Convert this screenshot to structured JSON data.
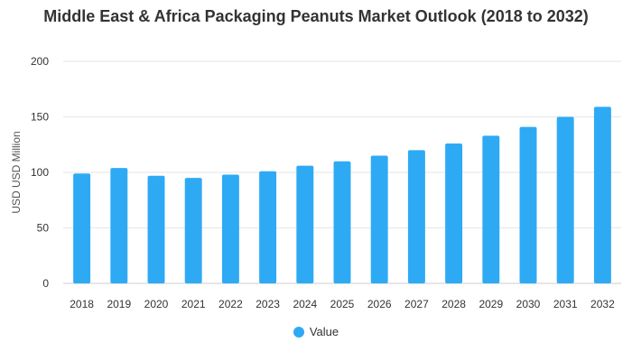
{
  "chart_data": {
    "type": "bar",
    "title": "Middle East & Africa Packaging Peanuts Market Outlook (2018 to 2032)",
    "xlabel": "",
    "ylabel": "USD USD Million",
    "ylim": [
      0,
      200
    ],
    "yticks": [
      0,
      50,
      100,
      150,
      200
    ],
    "grid": true,
    "legend_position": "bottom",
    "categories": [
      "2018",
      "2019",
      "2020",
      "2021",
      "2022",
      "2023",
      "2024",
      "2025",
      "2026",
      "2027",
      "2028",
      "2029",
      "2030",
      "2031",
      "2032"
    ],
    "series": [
      {
        "name": "Value",
        "color": "#2EAAF5",
        "values": [
          99,
          104,
          97,
          95,
          98,
          101,
          106,
          110,
          115,
          120,
          126,
          133,
          141,
          150,
          159
        ]
      }
    ]
  }
}
